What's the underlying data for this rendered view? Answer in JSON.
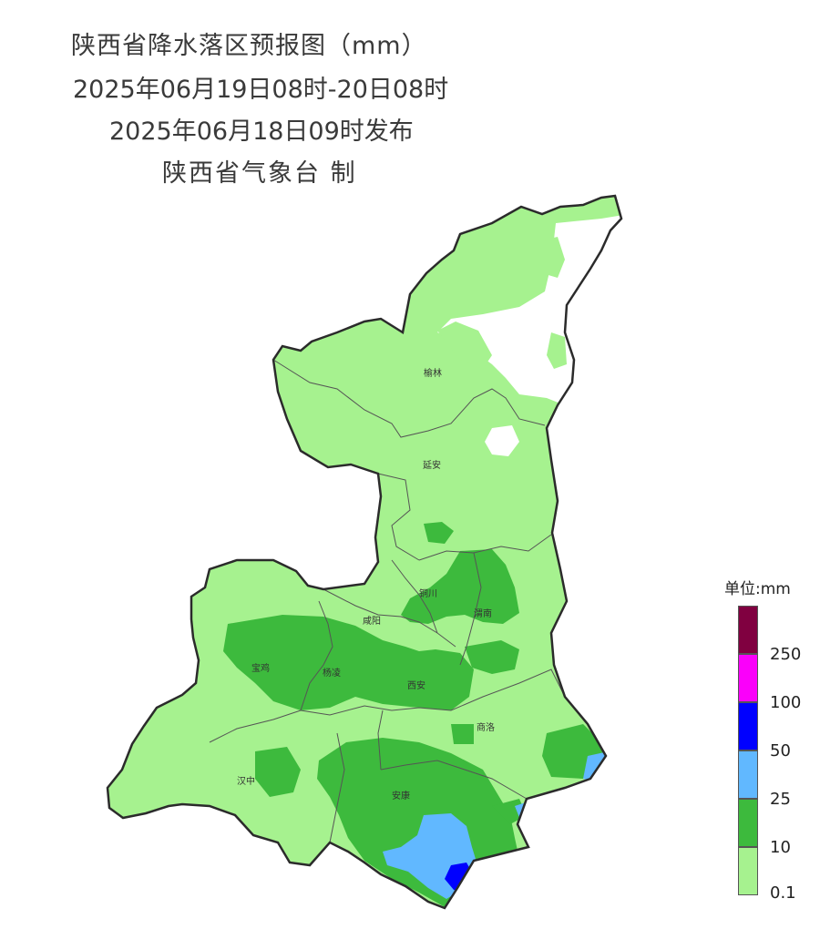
{
  "title": {
    "line1": "陕西省降水落区预报图（mm）",
    "line2": "2025年06月19日08时-20日08时",
    "line3": "2025年06月18日09时发布",
    "line4": "陕西省气象台 制"
  },
  "cities": [
    "榆林",
    "延安",
    "铜川",
    "咸阳",
    "渭南",
    "宝鸡",
    "杨凌",
    "西安",
    "商洛",
    "汉中",
    "安康"
  ],
  "legend": {
    "unit_label": "单位:mm",
    "levels": [
      {
        "label": "0.1",
        "color": "#a6f28f"
      },
      {
        "label": "10",
        "color": "#3dba3d"
      },
      {
        "label": "25",
        "color": "#61b8ff"
      },
      {
        "label": "50",
        "color": "#0000ff"
      },
      {
        "label": "100",
        "color": "#fa00fa"
      },
      {
        "label": "250",
        "color": "#800040"
      }
    ]
  },
  "colors": {
    "no_rain": "#ffffff",
    "light": "#a6f28f",
    "moderate": "#3dba3d",
    "heavy": "#61b8ff",
    "rainstorm": "#0000ff",
    "border": "#2b2b2b",
    "city_border": "#555555"
  }
}
